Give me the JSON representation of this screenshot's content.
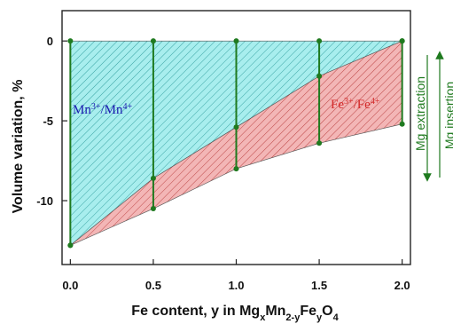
{
  "chart_data": {
    "type": "area",
    "xlabel": {
      "prefix": "Fe content, y in Mg",
      "segments": [
        {
          "text": "x",
          "sub": true
        },
        {
          "text": "Mn",
          "sub": false
        },
        {
          "text": "2-y",
          "sub": true
        },
        {
          "text": "Fe",
          "sub": false
        },
        {
          "text": "y",
          "sub": true
        },
        {
          "text": "O",
          "sub": false
        },
        {
          "text": "4",
          "sub": true
        }
      ]
    },
    "ylabel": "Volume variation, %",
    "xlim": [
      -0.05,
      2.05
    ],
    "ylim": [
      -14.0,
      1.9
    ],
    "xticks": [
      0.0,
      0.5,
      1.0,
      1.5,
      2.0
    ],
    "xtick_labels": [
      "0.0",
      "0.5",
      "1.0",
      "1.5",
      "2.0"
    ],
    "yticks": [
      0,
      -5,
      -10
    ],
    "ytick_labels": [
      "0",
      "-5",
      "-10"
    ],
    "x": [
      0.0,
      0.5,
      1.0,
      1.5,
      2.0
    ],
    "series": [
      {
        "key": "upper",
        "values": [
          0,
          0,
          0,
          0,
          0
        ]
      },
      {
        "key": "middle",
        "values": [
          -12.8,
          -8.6,
          -5.4,
          -2.2,
          0
        ]
      },
      {
        "key": "lower",
        "values": [
          -12.8,
          -10.5,
          -8.0,
          -6.4,
          -5.2
        ]
      }
    ],
    "regions": [
      {
        "label_main": "Mn",
        "label_sup1": "3+",
        "label_mid": "/Mn",
        "label_sup2": "4+",
        "fill": "#a8eeee",
        "hatch": "#1a8f8f",
        "text_color": "#1a1ab0"
      },
      {
        "label_main": "Fe",
        "label_sup1": "3+",
        "label_mid": "/Fe",
        "label_sup2": "4+",
        "fill": "#f3b6b6",
        "hatch": "#b02a2a",
        "text_color": "#d42a2a"
      }
    ],
    "marker_color": "#1f7a1f",
    "side_labels": [
      "Mg extraction",
      "Mg insertion"
    ]
  }
}
